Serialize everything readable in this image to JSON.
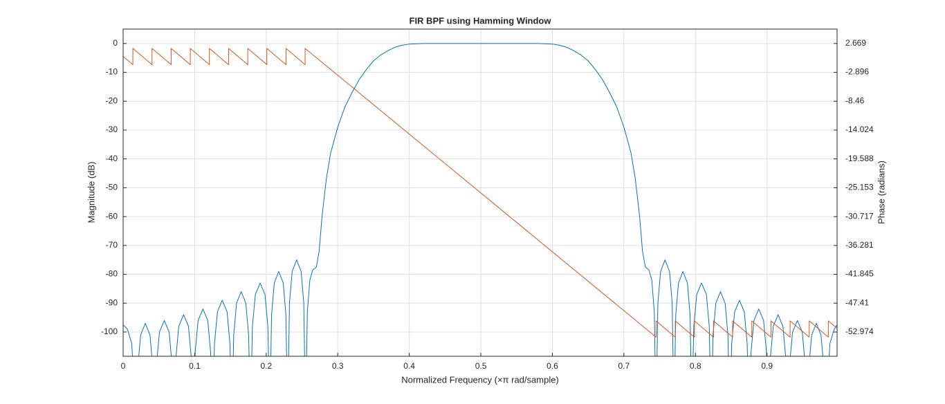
{
  "chart_data": {
    "type": "line",
    "title": "FIR BPF using Hamming Window",
    "x_label": "Normalized Frequency (×π rad/sample)",
    "y_label": "Magnitude (dB)",
    "y2_label": "Phase (radians)",
    "xlim": [
      0,
      0.998
    ],
    "xticks": [
      0,
      0.1,
      0.2,
      0.3,
      0.4,
      0.5,
      0.6,
      0.7,
      0.8,
      0.9
    ],
    "ylim": [
      -108.4,
      5
    ],
    "yticks": [
      0,
      -10,
      -20,
      -30,
      -40,
      -50,
      -60,
      -70,
      -80,
      -90,
      -100
    ],
    "y2lim": [
      -57.648,
      5.451
    ],
    "y2ticks": [
      2.669,
      -2.896,
      -8.46,
      -14.024,
      -19.588,
      -25.153,
      -30.717,
      -36.281,
      -41.845,
      -47.41,
      -52.974
    ],
    "grid": true,
    "series": [
      {
        "color": "#0072BD",
        "x": [
          0,
          0.006,
          0.012,
          0.018,
          0.0206,
          0.0245,
          0.031,
          0.0375,
          0.0414,
          0.044,
          0.0467,
          0.0508,
          0.0575,
          0.0643,
          0.0683,
          0.071,
          0.0737,
          0.0778,
          0.0845,
          0.0913,
          0.0953,
          0.098,
          0.1007,
          0.1048,
          0.1115,
          0.1183,
          0.1223,
          0.125,
          0.1277,
          0.1318,
          0.1385,
          0.1453,
          0.1493,
          0.152,
          0.1546,
          0.1585,
          0.165,
          0.1715,
          0.1754,
          0.178,
          0.1807,
          0.1848,
          0.1915,
          0.1983,
          0.2023,
          0.205,
          0.2075,
          0.2113,
          0.2175,
          0.2238,
          0.2275,
          0.23,
          0.2325,
          0.2363,
          0.2425,
          0.2488,
          0.2525,
          0.255,
          0.2575,
          0.261,
          0.265,
          0.27,
          0.274,
          0.278,
          0.284,
          0.29,
          0.3,
          0.31,
          0.32,
          0.33,
          0.34,
          0.35,
          0.36,
          0.37,
          0.38,
          0.39,
          0.4,
          0.42,
          0.5,
          0.58,
          0.6,
          0.61,
          0.62,
          0.63,
          0.64,
          0.65,
          0.66,
          0.67,
          0.68,
          0.69,
          0.7,
          0.71,
          0.716,
          0.722,
          0.726,
          0.73,
          0.735,
          0.739,
          0.7425,
          0.745,
          0.7475,
          0.7513,
          0.7575,
          0.7638,
          0.7675,
          0.77,
          0.7725,
          0.7763,
          0.7825,
          0.7888,
          0.7925,
          0.795,
          0.7977,
          0.8018,
          0.8085,
          0.8153,
          0.8193,
          0.822,
          0.8246,
          0.8285,
          0.835,
          0.8415,
          0.8454,
          0.848,
          0.8507,
          0.8548,
          0.8615,
          0.8683,
          0.8723,
          0.875,
          0.8777,
          0.8818,
          0.8885,
          0.8953,
          0.8993,
          0.902,
          0.9047,
          0.9088,
          0.9155,
          0.9223,
          0.9263,
          0.929,
          0.9317,
          0.9358,
          0.9425,
          0.9493,
          0.9533,
          0.956,
          0.9586,
          0.9625,
          0.969,
          0.9755,
          0.9794,
          0.982,
          0.988,
          0.994,
          0.998
        ],
        "values": [
          -97.5,
          -99,
          -104,
          -130,
          -112,
          -101,
          -97,
          -101,
          -112,
          -130,
          -111,
          -100,
          -96,
          -100,
          -111,
          -130,
          -109,
          -98,
          -94,
          -98,
          -109,
          -130,
          -107,
          -96,
          -92,
          -96,
          -107,
          -130,
          -104,
          -93,
          -89,
          -93,
          -104,
          -130,
          -101,
          -90,
          -86,
          -90,
          -101,
          -130,
          -98,
          -87,
          -83,
          -87,
          -98,
          -130,
          -94,
          -83,
          -79,
          -83,
          -94,
          -130,
          -90,
          -79,
          -75,
          -79,
          -90,
          -130,
          -93,
          -82,
          -78.5,
          -77.5,
          -72,
          -60,
          -47,
          -38,
          -29,
          -22,
          -17,
          -12.5,
          -9,
          -6,
          -4,
          -2.5,
          -1.3,
          -0.6,
          -0.2,
          0,
          0,
          0,
          -0.2,
          -0.6,
          -1.3,
          -2.5,
          -4,
          -6,
          -9,
          -12.5,
          -17,
          -22,
          -29,
          -38,
          -47,
          -60,
          -72,
          -77.5,
          -78.5,
          -82,
          -93,
          -130,
          -90,
          -79,
          -75,
          -79,
          -90,
          -130,
          -94,
          -83,
          -79,
          -83,
          -94,
          -130,
          -98,
          -87,
          -83,
          -87,
          -98,
          -130,
          -101,
          -90,
          -86,
          -90,
          -101,
          -130,
          -104,
          -93,
          -89,
          -93,
          -104,
          -130,
          -107,
          -96,
          -92,
          -96,
          -107,
          -130,
          -109,
          -98,
          -94,
          -98,
          -109,
          -130,
          -111,
          -100,
          -96,
          -100,
          -111,
          -130,
          -112,
          -101,
          -97,
          -101,
          -112,
          -130,
          -104,
          -99,
          -97.5
        ]
      },
      {
        "color": "#D95319",
        "axis": "y2",
        "x": [
          0,
          0.0136,
          0.0136,
          0.0404,
          0.0404,
          0.0671,
          0.0671,
          0.0939,
          0.0939,
          0.1206,
          0.1206,
          0.1474,
          0.1474,
          0.1742,
          0.1742,
          0.2009,
          0.2009,
          0.2277,
          0.2277,
          0.2544,
          0.2544,
          0.745,
          0.745,
          0.7718,
          0.7718,
          0.7985,
          0.7985,
          0.8253,
          0.8253,
          0.852,
          0.852,
          0.8788,
          0.8788,
          0.9056,
          0.9056,
          0.9323,
          0.9323,
          0.9591,
          0.9591,
          0.9858,
          0.9858,
          0.998
        ],
        "values": [
          0.18,
          -1.42,
          1.72,
          -1.42,
          1.72,
          -1.42,
          1.72,
          -1.42,
          1.72,
          -1.42,
          1.72,
          -1.42,
          1.72,
          -1.42,
          1.72,
          -1.42,
          1.72,
          -1.42,
          1.72,
          -1.42,
          1.72,
          -53.96,
          -50.82,
          -53.96,
          -50.82,
          -53.96,
          -50.82,
          -53.96,
          -50.82,
          -53.96,
          -50.82,
          -53.96,
          -50.82,
          -53.96,
          -50.82,
          -53.96,
          -50.82,
          -53.96,
          -50.82,
          -53.96,
          -50.82,
          -52.25
        ]
      }
    ]
  }
}
